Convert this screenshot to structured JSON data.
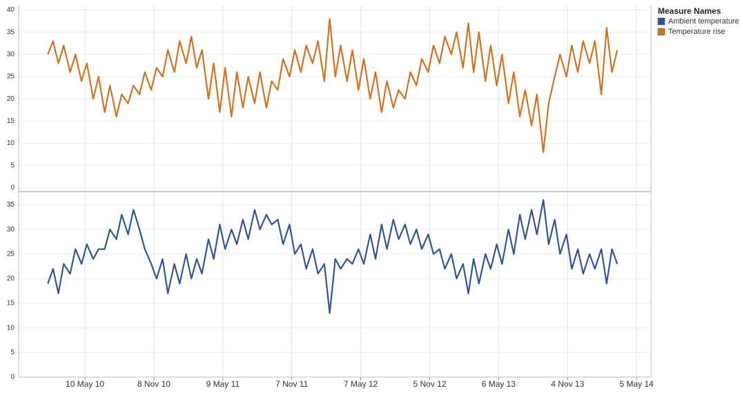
{
  "chart_data": {
    "type": "line",
    "legend_title": "Measure Names",
    "grid": true,
    "x": [
      "2010-02-01",
      "2010-02-15",
      "2010-03-01",
      "2010-03-15",
      "2010-04-01",
      "2010-04-15",
      "2010-05-01",
      "2010-05-15",
      "2010-06-01",
      "2010-06-15",
      "2010-07-01",
      "2010-07-15",
      "2010-08-01",
      "2010-08-15",
      "2010-09-01",
      "2010-09-15",
      "2010-10-01",
      "2010-10-15",
      "2010-11-01",
      "2010-11-15",
      "2010-12-01",
      "2010-12-15",
      "2011-01-01",
      "2011-01-15",
      "2011-02-01",
      "2011-02-15",
      "2011-03-01",
      "2011-03-15",
      "2011-04-01",
      "2011-04-15",
      "2011-05-01",
      "2011-05-15",
      "2011-06-01",
      "2011-06-15",
      "2011-07-01",
      "2011-07-15",
      "2011-08-01",
      "2011-08-15",
      "2011-09-01",
      "2011-09-15",
      "2011-10-01",
      "2011-10-15",
      "2011-11-01",
      "2011-11-15",
      "2011-12-01",
      "2011-12-15",
      "2012-01-01",
      "2012-01-15",
      "2012-02-01",
      "2012-02-15",
      "2012-03-01",
      "2012-03-15",
      "2012-04-01",
      "2012-04-15",
      "2012-05-01",
      "2012-05-15",
      "2012-06-01",
      "2012-06-15",
      "2012-07-01",
      "2012-07-15",
      "2012-08-01",
      "2012-08-15",
      "2012-09-01",
      "2012-09-15",
      "2012-10-01",
      "2012-10-15",
      "2012-11-01",
      "2012-11-15",
      "2012-12-01",
      "2012-12-15",
      "2013-01-01",
      "2013-01-15",
      "2013-02-01",
      "2013-02-15",
      "2013-03-01",
      "2013-03-15",
      "2013-04-01",
      "2013-04-15",
      "2013-05-01",
      "2013-05-15",
      "2013-06-01",
      "2013-06-15",
      "2013-07-01",
      "2013-07-15",
      "2013-08-01",
      "2013-08-15",
      "2013-09-01",
      "2013-09-15",
      "2013-10-01",
      "2013-10-15",
      "2013-11-01",
      "2013-11-15",
      "2013-12-01",
      "2013-12-15",
      "2014-01-01",
      "2014-01-15",
      "2014-02-01",
      "2014-02-15",
      "2014-03-01",
      "2014-03-15"
    ],
    "xlim": [
      "2009-11-16",
      "2014-06-12"
    ],
    "xticks": [
      {
        "value": "2010-05-10",
        "label": "10 May 10"
      },
      {
        "value": "2010-11-08",
        "label": "8 Nov 10"
      },
      {
        "value": "2011-05-09",
        "label": "9 May 11"
      },
      {
        "value": "2011-11-07",
        "label": "7 Nov 11"
      },
      {
        "value": "2012-05-07",
        "label": "7 May 12"
      },
      {
        "value": "2012-11-05",
        "label": "5 Nov 12"
      },
      {
        "value": "2013-05-06",
        "label": "6 May 13"
      },
      {
        "value": "2013-11-04",
        "label": "4 Nov 13"
      },
      {
        "value": "2014-05-05",
        "label": "5 May 14"
      }
    ],
    "series": [
      {
        "name": "Ambient temperature",
        "color": "#2f5597",
        "ylim": [
          0,
          37.6
        ],
        "yticks": [
          0,
          5,
          10,
          15,
          20,
          25,
          30,
          35
        ],
        "values": [
          19,
          22,
          17,
          23,
          21,
          26,
          23,
          27,
          24,
          26,
          26,
          30,
          28,
          33,
          29,
          34,
          30,
          26,
          23,
          20,
          24,
          17,
          23,
          19,
          25,
          20,
          24,
          21,
          28,
          24,
          31,
          26,
          30,
          27,
          32,
          28,
          34,
          30,
          33,
          31,
          32,
          27,
          31,
          25,
          27,
          22,
          26,
          21,
          23,
          13,
          24,
          22,
          24,
          23,
          26,
          23,
          29,
          24,
          31,
          26,
          32,
          28,
          31,
          27,
          30,
          26,
          29,
          25,
          26,
          22,
          25,
          20,
          23,
          17,
          24,
          19,
          25,
          22,
          27,
          23,
          30,
          25,
          33,
          28,
          34,
          29,
          36,
          27,
          32,
          25,
          29,
          22,
          26,
          21,
          25,
          22,
          26,
          19,
          26,
          23
        ]
      },
      {
        "name": "Temperature rise",
        "color": "#d2711e",
        "ylim": [
          -0.8,
          41
        ],
        "yticks": [
          0,
          5,
          10,
          15,
          20,
          25,
          30,
          35,
          40
        ],
        "values": [
          30,
          33,
          28,
          32,
          26,
          30,
          24,
          28,
          20,
          25,
          17,
          23,
          16,
          21,
          19,
          23,
          21,
          26,
          22,
          27,
          25,
          31,
          26,
          33,
          28,
          34,
          27,
          31,
          20,
          28,
          17,
          27,
          16,
          26,
          18,
          25,
          19,
          26,
          18,
          24,
          22,
          29,
          25,
          31,
          26,
          32,
          28,
          33,
          24,
          38,
          25,
          32,
          24,
          31,
          22,
          29,
          20,
          26,
          17,
          24,
          18,
          22,
          20,
          26,
          23,
          29,
          26,
          32,
          28,
          34,
          30,
          35,
          27,
          37,
          26,
          35,
          24,
          32,
          23,
          30,
          19,
          26,
          16,
          22,
          14,
          21,
          8,
          19,
          25,
          30,
          25,
          32,
          26,
          33,
          28,
          33,
          21,
          36,
          26,
          31
        ]
      }
    ]
  }
}
